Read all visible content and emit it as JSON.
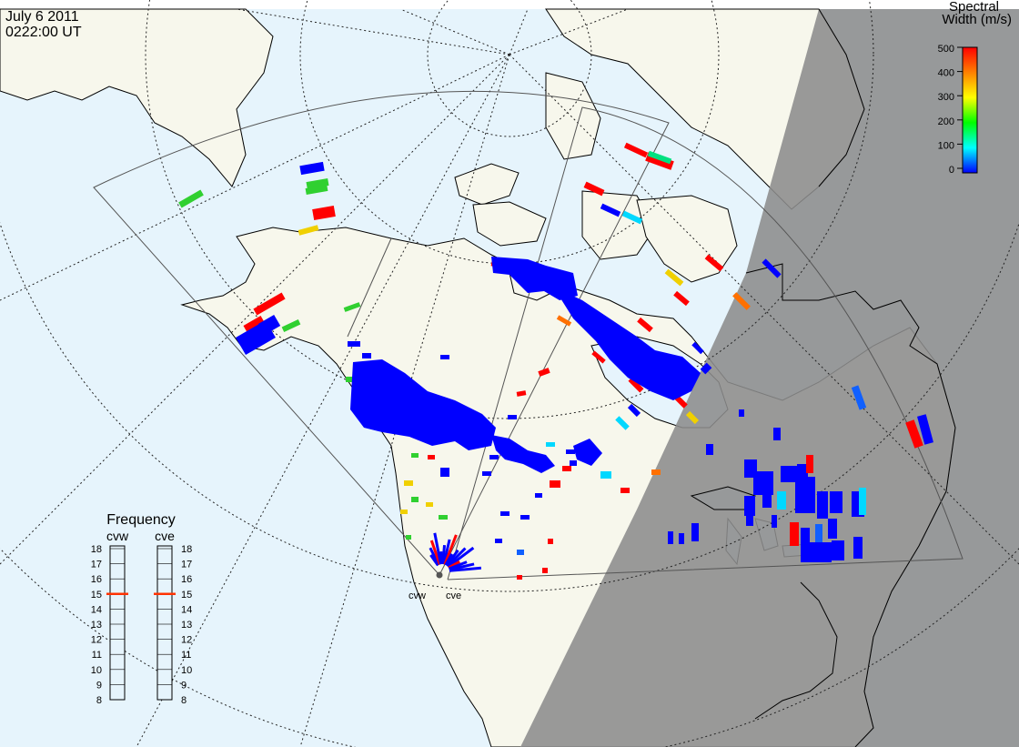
{
  "header": {
    "date": "July  6 2011",
    "time": "0222:00 UT"
  },
  "colorbar": {
    "title_line1": "Spectral",
    "title_line2": "Width (m/s)",
    "ticks": [
      "500",
      "400",
      "300",
      "200",
      "100",
      "0"
    ],
    "range": [
      0,
      500
    ],
    "colors": [
      "#ff0000",
      "#ff8000",
      "#ffff00",
      "#00ff00",
      "#00ffff",
      "#0000ff"
    ]
  },
  "frequency_panel": {
    "title": "Frequency",
    "radars": [
      {
        "name": "cvw",
        "selected_mhz": 15
      },
      {
        "name": "cve",
        "selected_mhz": 15
      }
    ],
    "ticks": [
      "18",
      "17",
      "16",
      "15",
      "14",
      "13",
      "12",
      "11",
      "10",
      "9",
      "8"
    ]
  },
  "radar_sites": [
    {
      "name": "cvw"
    },
    {
      "name": "cve"
    }
  ],
  "colors": {
    "ocean": "#e6f4fc",
    "land": "#f7f7ec",
    "night": "#8c8c8c",
    "coast": "#000000",
    "low_width": "#0000ff",
    "marker": "#ff3300"
  }
}
